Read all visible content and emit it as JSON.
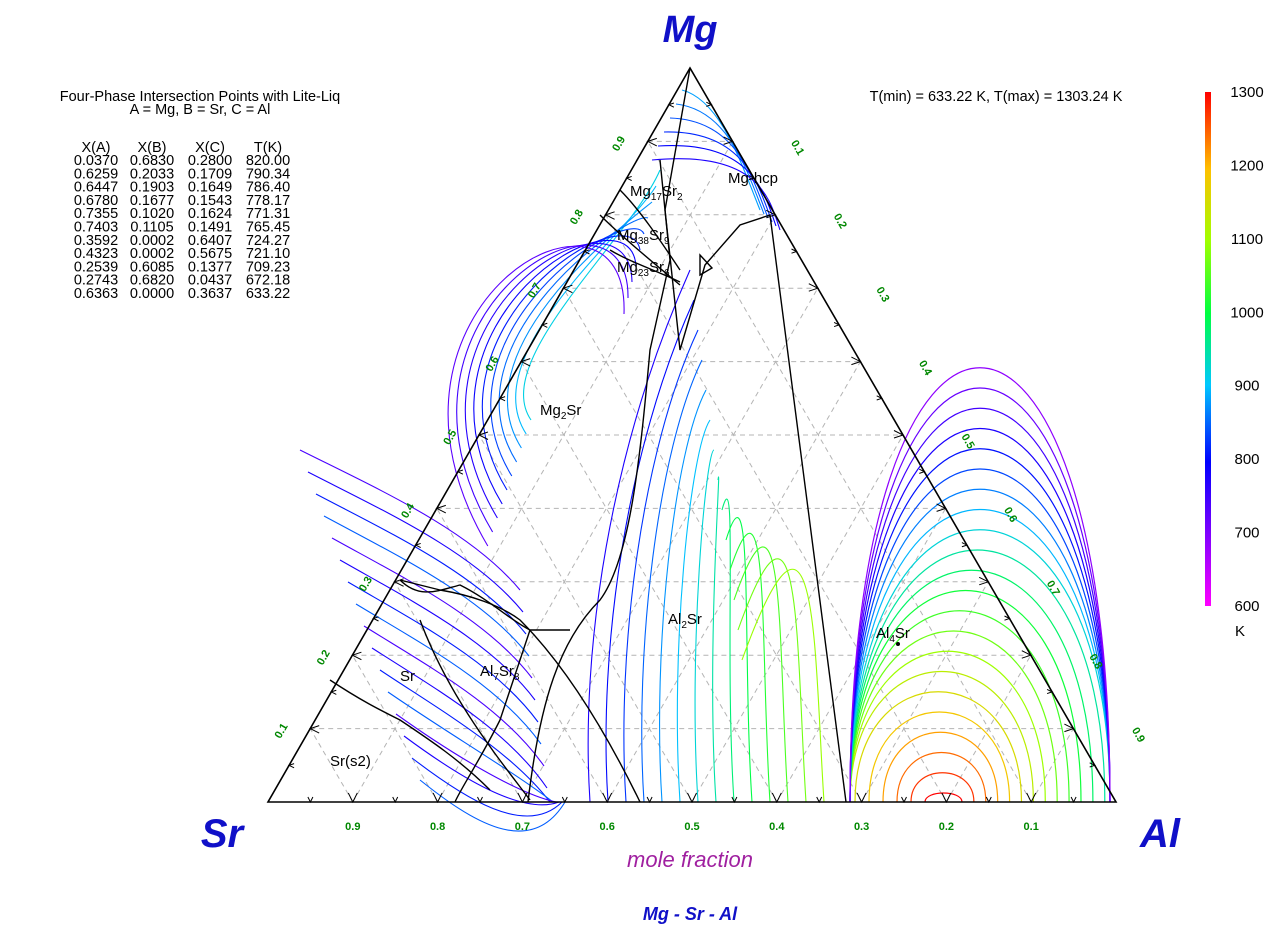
{
  "vertex_labels": {
    "top": "Mg",
    "left": "Sr",
    "right": "Al"
  },
  "bottom_title": "Mg - Sr - Al",
  "axis_label": "mole fraction",
  "table": {
    "title": "Four-Phase Intersection Points with Lite-Liq",
    "subtitle": "A = Mg, B = Sr, C = Al",
    "headers": [
      "X(A)",
      "X(B)",
      "X(C)",
      "T(K)"
    ],
    "rows": [
      [
        "0.0370",
        "0.6830",
        "0.2800",
        "820.00"
      ],
      [
        "0.6259",
        "0.2033",
        "0.1709",
        "790.34"
      ],
      [
        "0.6447",
        "0.1903",
        "0.1649",
        "786.40"
      ],
      [
        "0.6780",
        "0.1677",
        "0.1543",
        "778.17"
      ],
      [
        "0.7355",
        "0.1020",
        "0.1624",
        "771.31"
      ],
      [
        "0.7403",
        "0.1105",
        "0.1491",
        "765.45"
      ],
      [
        "0.3592",
        "0.0002",
        "0.6407",
        "724.27"
      ],
      [
        "0.4323",
        "0.0002",
        "0.5675",
        "721.10"
      ],
      [
        "0.2539",
        "0.6085",
        "0.1377",
        "709.23"
      ],
      [
        "0.2743",
        "0.6820",
        "0.0437",
        "672.18"
      ],
      [
        "0.6363",
        "0.0000",
        "0.3637",
        "633.22"
      ]
    ]
  },
  "trange": "T(min) = 633.22 K, T(max) = 1303.24 K",
  "colorbar": {
    "min": 600,
    "max": 1300,
    "ticks": [
      "1300",
      "1200",
      "1100",
      "1000",
      "900",
      "800",
      "700",
      "600"
    ],
    "unit": "K"
  },
  "bottom_ticks": [
    "0.9",
    "0.8",
    "0.7",
    "0.6",
    "0.5",
    "0.4",
    "0.3",
    "0.2",
    "0.1"
  ],
  "left_ticks": [
    "0.1",
    "0.2",
    "0.3",
    "0.4",
    "0.5",
    "0.6",
    "0.7",
    "0.8",
    "0.9"
  ],
  "right_ticks": [
    "0.1",
    "0.2",
    "0.3",
    "0.4",
    "0.5",
    "0.6",
    "0.7",
    "0.8",
    "0.9"
  ],
  "phase_labels": [
    {
      "name": "Mg-hcp",
      "parts": [
        [
          "Mg-hcp",
          false
        ]
      ]
    },
    {
      "name": "Mg17Sr2",
      "parts": [
        [
          "Mg",
          false
        ],
        [
          "17",
          true
        ],
        [
          "Sr",
          false
        ],
        [
          "2",
          true
        ]
      ]
    },
    {
      "name": "Mg38Sr9",
      "parts": [
        [
          "Mg",
          false
        ],
        [
          "38",
          true
        ],
        [
          "Sr",
          false
        ],
        [
          "9",
          true
        ]
      ]
    },
    {
      "name": "Mg23Sr6",
      "parts": [
        [
          "Mg",
          false
        ],
        [
          "23",
          true
        ],
        [
          "Sr",
          false
        ],
        [
          "6",
          true
        ]
      ]
    },
    {
      "name": "Mg2Sr",
      "parts": [
        [
          "Mg",
          false
        ],
        [
          "2",
          true
        ],
        [
          "Sr",
          false
        ]
      ]
    },
    {
      "name": "Al2Sr",
      "parts": [
        [
          "Al",
          false
        ],
        [
          "2",
          true
        ],
        [
          "Sr",
          false
        ]
      ]
    },
    {
      "name": "Al4Sr",
      "parts": [
        [
          "Al",
          false
        ],
        [
          "4",
          true
        ],
        [
          "Sr",
          false
        ]
      ]
    },
    {
      "name": "Al7Sr8",
      "parts": [
        [
          "Al",
          false
        ],
        [
          "7",
          true
        ],
        [
          "Sr",
          false
        ],
        [
          "8",
          true
        ]
      ]
    },
    {
      "name": "Sr",
      "parts": [
        [
          "Sr",
          false
        ]
      ]
    },
    {
      "name": "Sr(s2)",
      "parts": [
        [
          "Sr(s2)",
          false
        ]
      ]
    }
  ],
  "colors": {
    "title_blue": "#1010c8",
    "tick_green": "#008800",
    "axis_label_purple": "#a020a0",
    "boundary": "#000000",
    "grid": "#b4b4b4"
  }
}
